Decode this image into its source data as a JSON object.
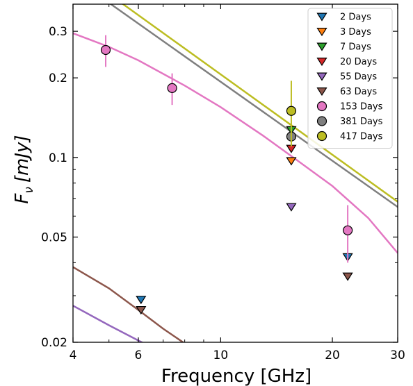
{
  "chart_data": {
    "type": "scatter",
    "title": "",
    "xlabel": "Frequency [GHz]",
    "ylabel": "F_ν [mJy]",
    "ylabel_parts": {
      "symbol": "F",
      "subscript": "ν",
      "units": "[mJy]"
    },
    "xscale": "log",
    "yscale": "log",
    "xlim": [
      4,
      30
    ],
    "ylim": [
      0.02,
      0.38
    ],
    "x_ticks": [
      {
        "value": 4,
        "label": "4"
      },
      {
        "value": 6,
        "label": "6"
      },
      {
        "value": 10,
        "label": "10"
      },
      {
        "value": 20,
        "label": "20"
      },
      {
        "value": 30,
        "label": "30"
      }
    ],
    "x_minor_ticks": [
      5,
      7,
      8,
      9
    ],
    "y_ticks": [
      {
        "value": 0.02,
        "label": "0.02"
      },
      {
        "value": 0.05,
        "label": "0.05"
      },
      {
        "value": 0.1,
        "label": "0.1"
      },
      {
        "value": 0.2,
        "label": "0.2"
      },
      {
        "value": 0.3,
        "label": "0.3"
      }
    ],
    "y_minor_ticks": [
      0.03,
      0.04,
      0.06,
      0.07,
      0.08,
      0.09
    ],
    "legend_position": "top-right",
    "series": [
      {
        "name": "2 Days",
        "marker": "triangle-down",
        "color": "#1f77b4",
        "points": [
          {
            "x": 6.1,
            "y": 0.029
          },
          {
            "x": 22.0,
            "y": 0.042
          }
        ]
      },
      {
        "name": "3 Days",
        "marker": "triangle-down",
        "color": "#ff7f0e",
        "points": [
          {
            "x": 15.5,
            "y": 0.097
          }
        ]
      },
      {
        "name": "7 Days",
        "marker": "triangle-down",
        "color": "#2ca02c",
        "points": [
          {
            "x": 15.5,
            "y": 0.127
          }
        ]
      },
      {
        "name": "20 Days",
        "marker": "triangle-down",
        "color": "#d62728",
        "points": [
          {
            "x": 15.5,
            "y": 0.108
          }
        ]
      },
      {
        "name": "55 Days",
        "marker": "triangle-down",
        "color": "#9467bd",
        "points": [
          {
            "x": 15.5,
            "y": 0.065
          }
        ]
      },
      {
        "name": "63 Days",
        "marker": "triangle-down",
        "color": "#8c564b",
        "points": [
          {
            "x": 6.1,
            "y": 0.0265
          },
          {
            "x": 22.0,
            "y": 0.0355
          }
        ]
      },
      {
        "name": "153 Days",
        "marker": "circle",
        "color": "#e377c2",
        "points": [
          {
            "x": 4.9,
            "y": 0.255,
            "err_lo": 0.035,
            "err_hi": 0.035
          },
          {
            "x": 7.4,
            "y": 0.183,
            "err_lo": 0.025,
            "err_hi": 0.025
          },
          {
            "x": 22.0,
            "y": 0.053,
            "err_lo": 0.013,
            "err_hi": 0.013
          }
        ]
      },
      {
        "name": "381 Days",
        "marker": "circle",
        "color": "#7f7f7f",
        "points": [
          {
            "x": 15.5,
            "y": 0.12
          }
        ]
      },
      {
        "name": "417 Days",
        "marker": "circle",
        "color": "#bcbd22",
        "points": [
          {
            "x": 15.5,
            "y": 0.15,
            "err_lo": 0.04,
            "err_hi": 0.045
          }
        ]
      }
    ],
    "model_curves": [
      {
        "series": "417 Days",
        "color": "#bcbd22",
        "x": [
          4,
          30
        ],
        "y": [
          0.52,
          0.068
        ]
      },
      {
        "series": "381 Days",
        "color": "#7f7f7f",
        "x": [
          4,
          30
        ],
        "y": [
          0.48,
          0.065
        ]
      },
      {
        "series": "153 Days",
        "color": "#e377c2",
        "x": [
          4,
          5,
          6,
          8,
          10,
          13,
          16,
          20,
          25,
          30
        ],
        "y": [
          0.295,
          0.262,
          0.233,
          0.187,
          0.155,
          0.121,
          0.098,
          0.078,
          0.059,
          0.0435
        ]
      },
      {
        "series": "63 Days",
        "color": "#8c564b",
        "x": [
          4,
          5,
          6,
          7,
          8
        ],
        "y": [
          0.0385,
          0.032,
          0.0265,
          0.0225,
          0.0198
        ]
      },
      {
        "series": "55 Days",
        "color": "#9467bd",
        "x": [
          4,
          5,
          6,
          6.5
        ],
        "y": [
          0.0275,
          0.0232,
          0.0203,
          0.0192
        ]
      }
    ]
  }
}
